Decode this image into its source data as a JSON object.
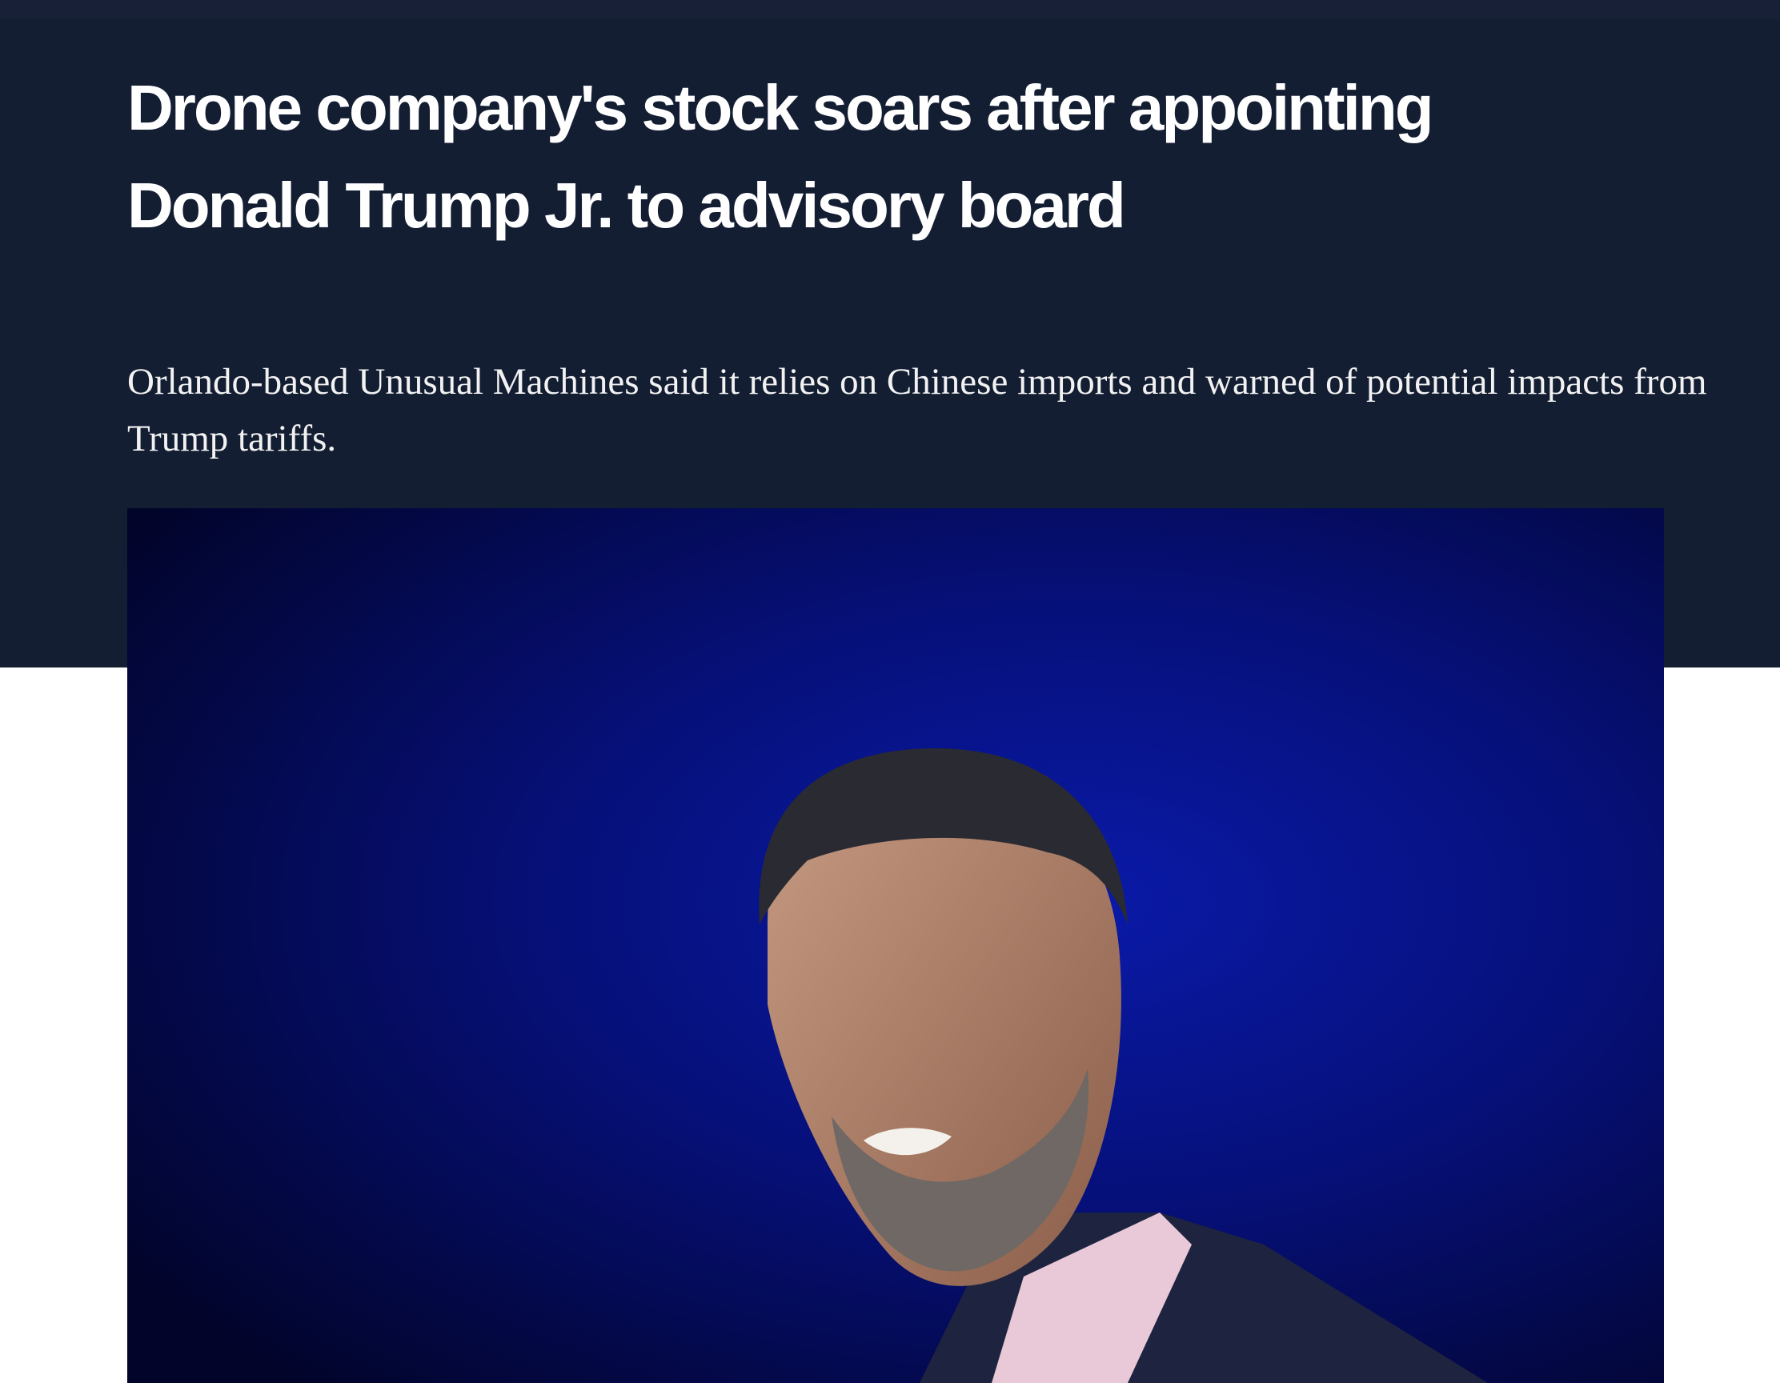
{
  "header": {
    "title": "Drone company's stock soars after appointing Donald Trump Jr. to advisory board",
    "subtitle": "Orlando-based Unusual Machines said it relies on Chinese imports and warned of potential impacts from Trump tariffs."
  }
}
